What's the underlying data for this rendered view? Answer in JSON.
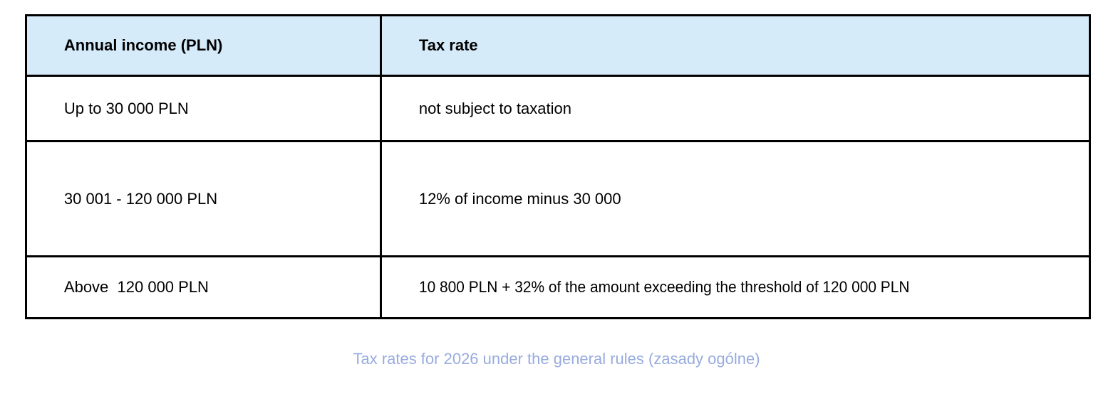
{
  "table": {
    "columns": [
      {
        "label": "Annual income (PLN)"
      },
      {
        "label": "Tax rate"
      }
    ],
    "rows": [
      {
        "income": "Up to 30 000 PLN",
        "rate": "not subject to taxation"
      },
      {
        "income": "30 001 - 120 000 PLN",
        "rate": "12% of income minus 30 000"
      },
      {
        "income": "Above  120 000 PLN",
        "rate": "10 800 PLN + 32% of the amount exceeding the threshold of 120 000 PLN"
      }
    ]
  },
  "caption": {
    "text": "Tax rates for 2026 under the general rules (zasady ogólne)"
  },
  "colors": {
    "header_bg": "#d6ebfa",
    "border": "#000000",
    "text": "#000000",
    "caption": "#97abde",
    "page_bg": "#ffffff"
  }
}
